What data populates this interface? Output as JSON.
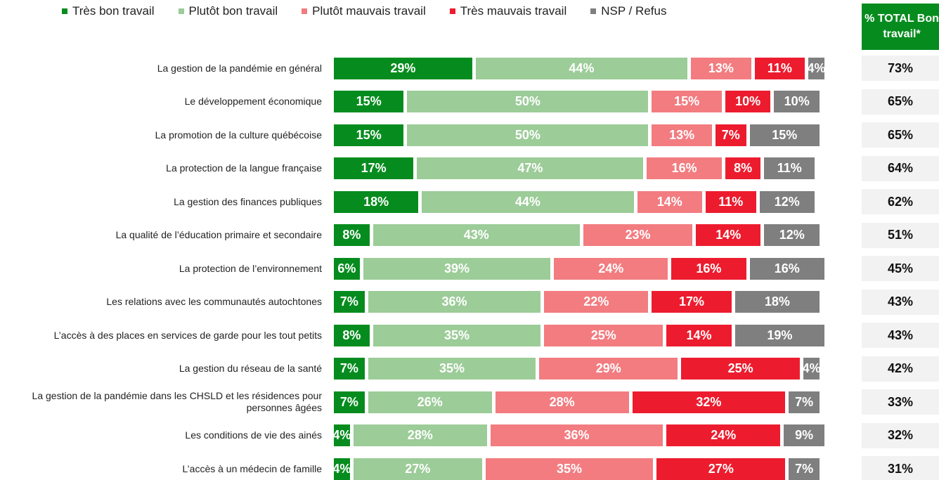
{
  "chart_data": {
    "type": "stacked-bar-horizontal",
    "categories": [
      "La gestion de la pandémie en général",
      "Le développement économique",
      "La promotion de la culture québécoise",
      "La protection de la langue française",
      "La gestion des finances publiques",
      "La qualité de l’éducation primaire et secondaire",
      "La protection de l’environnement",
      "Les relations avec les communautés autochtones",
      "L’accès à des places en services de garde pour les tout petits",
      "La gestion du réseau de la santé",
      "La gestion de la pandémie dans les CHSLD et les résidences pour personnes âgées",
      "Les conditions de vie des ainés",
      "L’accès à un médecin de famille"
    ],
    "series": [
      {
        "name": "Très bon travail",
        "color": "#068c1e",
        "values": [
          29,
          15,
          15,
          17,
          18,
          8,
          6,
          7,
          8,
          7,
          7,
          4,
          4
        ],
        "value_labels": [
          "29%",
          "15%",
          "15%",
          "17%",
          "18%",
          "8%",
          "6%",
          "7%",
          "8%",
          "7%",
          "7%",
          "4%",
          "4%"
        ]
      },
      {
        "name": "Plutôt bon travail",
        "color": "#9ccc98",
        "values": [
          44,
          50,
          50,
          47,
          44,
          43,
          39,
          36,
          35,
          35,
          26,
          28,
          27
        ],
        "value_labels": [
          "44%",
          "50%",
          "50%",
          "47%",
          "44%",
          "43%",
          "39%",
          "36%",
          "35%",
          "35%",
          "26%",
          "28%",
          "27%"
        ]
      },
      {
        "name": "Plutôt mauvais travail",
        "color": "#f27c80",
        "values": [
          13,
          15,
          13,
          16,
          14,
          23,
          24,
          22,
          25,
          29,
          28,
          36,
          35
        ],
        "value_labels": [
          "13%",
          "15%",
          "13%",
          "16%",
          "14%",
          "23%",
          "24%",
          "22%",
          "25%",
          "29%",
          "28%",
          "36%",
          "35%"
        ]
      },
      {
        "name": "Très mauvais travail",
        "color": "#ec1c2e",
        "values": [
          11,
          10,
          7,
          8,
          11,
          14,
          16,
          17,
          14,
          25,
          32,
          24,
          27
        ],
        "value_labels": [
          "11%",
          "10%",
          "7%",
          "8%",
          "11%",
          "14%",
          "16%",
          "17%",
          "14%",
          "25%",
          "32%",
          "24%",
          "27%"
        ]
      },
      {
        "name": "NSP / Refus",
        "color": "#7f7f7f",
        "values": [
          4,
          10,
          15,
          11,
          12,
          12,
          16,
          18,
          19,
          4,
          7,
          9,
          7
        ],
        "value_labels": [
          "4%",
          "10%",
          "15%",
          "11%",
          "12%",
          "12%",
          "16%",
          "18%",
          "19%",
          "4%",
          "7%",
          "9%",
          "7%"
        ]
      }
    ],
    "total_column": {
      "title": "% TOTAL Bon travail*",
      "color": "#068c1e",
      "values": [
        73,
        65,
        65,
        64,
        62,
        51,
        45,
        43,
        43,
        42,
        33,
        32,
        31
      ],
      "value_labels": [
        "73%",
        "65%",
        "65%",
        "64%",
        "62%",
        "51%",
        "45%",
        "43%",
        "43%",
        "42%",
        "33%",
        "32%",
        "31%"
      ]
    },
    "legend": "top"
  }
}
